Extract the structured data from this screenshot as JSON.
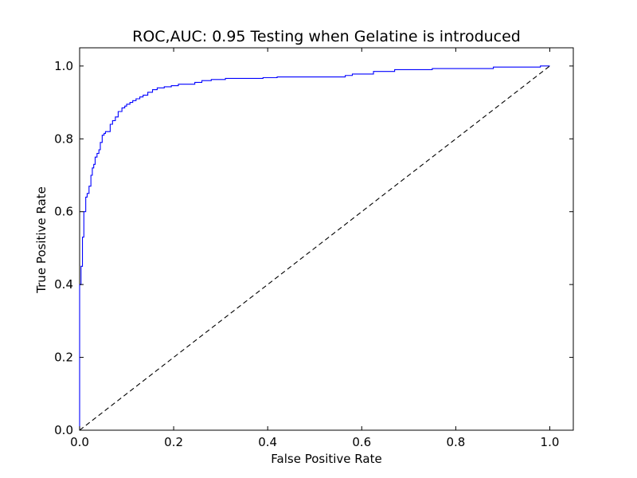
{
  "chart_data": {
    "type": "line",
    "title": "ROC,AUC: 0.95 Testing when Gelatine is introduced",
    "xlabel": "False Positive Rate",
    "ylabel": "True Positive Rate",
    "xlim": [
      0.0,
      1.05
    ],
    "ylim": [
      0.0,
      1.05
    ],
    "xticks": [
      0.0,
      0.2,
      0.4,
      0.6,
      0.8,
      1.0
    ],
    "yticks": [
      0.0,
      0.2,
      0.4,
      0.6,
      0.8,
      1.0
    ],
    "xtick_labels": [
      "0.0",
      "0.2",
      "0.4",
      "0.6",
      "0.8",
      "1.0"
    ],
    "ytick_labels": [
      "0.0",
      "0.2",
      "0.4",
      "0.6",
      "0.8",
      "1.0"
    ],
    "grid": false,
    "series": [
      {
        "style": "solid",
        "color": "#0000ff",
        "x": [
          0.0,
          0.0,
          0.003,
          0.003,
          0.006,
          0.006,
          0.009,
          0.009,
          0.013,
          0.013,
          0.016,
          0.016,
          0.02,
          0.02,
          0.024,
          0.024,
          0.027,
          0.027,
          0.03,
          0.03,
          0.033,
          0.033,
          0.037,
          0.037,
          0.041,
          0.041,
          0.044,
          0.044,
          0.048,
          0.048,
          0.052,
          0.052,
          0.055,
          0.055,
          0.065,
          0.065,
          0.07,
          0.07,
          0.076,
          0.076,
          0.082,
          0.082,
          0.09,
          0.09,
          0.096,
          0.096,
          0.1,
          0.1,
          0.107,
          0.107,
          0.113,
          0.113,
          0.12,
          0.12,
          0.128,
          0.128,
          0.135,
          0.135,
          0.145,
          0.145,
          0.155,
          0.155,
          0.165,
          0.165,
          0.18,
          0.18,
          0.195,
          0.195,
          0.21,
          0.21,
          0.245,
          0.245,
          0.26,
          0.26,
          0.28,
          0.28,
          0.31,
          0.31,
          0.39,
          0.39,
          0.42,
          0.42,
          0.565,
          0.565,
          0.58,
          0.58,
          0.625,
          0.625,
          0.67,
          0.67,
          0.75,
          0.75,
          0.88,
          0.88,
          0.98,
          0.98,
          1.0
        ],
        "y": [
          0.0,
          0.4,
          0.4,
          0.45,
          0.45,
          0.53,
          0.53,
          0.6,
          0.6,
          0.64,
          0.64,
          0.65,
          0.65,
          0.67,
          0.67,
          0.7,
          0.7,
          0.72,
          0.72,
          0.73,
          0.73,
          0.75,
          0.75,
          0.76,
          0.76,
          0.77,
          0.77,
          0.79,
          0.79,
          0.81,
          0.81,
          0.815,
          0.815,
          0.82,
          0.82,
          0.84,
          0.84,
          0.85,
          0.85,
          0.86,
          0.86,
          0.875,
          0.875,
          0.885,
          0.885,
          0.89,
          0.89,
          0.895,
          0.895,
          0.9,
          0.9,
          0.905,
          0.905,
          0.91,
          0.91,
          0.915,
          0.915,
          0.92,
          0.92,
          0.928,
          0.928,
          0.935,
          0.935,
          0.94,
          0.94,
          0.943,
          0.943,
          0.946,
          0.946,
          0.95,
          0.95,
          0.955,
          0.955,
          0.96,
          0.96,
          0.963,
          0.963,
          0.966,
          0.966,
          0.968,
          0.968,
          0.97,
          0.97,
          0.974,
          0.974,
          0.978,
          0.978,
          0.985,
          0.985,
          0.99,
          0.99,
          0.993,
          0.993,
          0.997,
          0.997,
          1.0,
          1.0
        ]
      },
      {
        "style": "dashed",
        "color": "#000000",
        "x": [
          0.0,
          1.0
        ],
        "y": [
          0.0,
          1.0
        ]
      }
    ]
  }
}
